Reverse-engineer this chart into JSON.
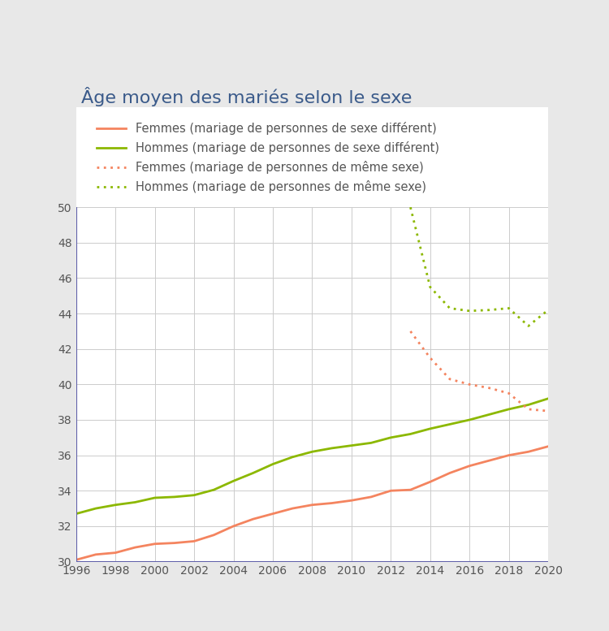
{
  "title": "Âge moyen des mariés selon le sexe",
  "years_main": [
    1996,
    1997,
    1998,
    1999,
    2000,
    2001,
    2002,
    2003,
    2004,
    2005,
    2006,
    2007,
    2008,
    2009,
    2010,
    2011,
    2012,
    2013,
    2014,
    2015,
    2016,
    2017,
    2018,
    2019,
    2020
  ],
  "femmes_diff": [
    30.1,
    30.4,
    30.5,
    30.8,
    31.0,
    31.05,
    31.15,
    31.5,
    32.0,
    32.4,
    32.7,
    33.0,
    33.2,
    33.3,
    33.45,
    33.65,
    34.0,
    34.05,
    34.5,
    35.0,
    35.4,
    35.7,
    36.0,
    36.2,
    36.5
  ],
  "hommes_diff": [
    32.7,
    33.0,
    33.2,
    33.35,
    33.6,
    33.65,
    33.75,
    34.05,
    34.55,
    35.0,
    35.5,
    35.9,
    36.2,
    36.4,
    36.55,
    36.7,
    37.0,
    37.2,
    37.5,
    37.75,
    38.0,
    38.3,
    38.6,
    38.85,
    39.2
  ],
  "years_same": [
    2013,
    2014,
    2015,
    2016,
    2017,
    2018,
    2019,
    2020
  ],
  "femmes_same": [
    43.0,
    41.5,
    40.3,
    40.0,
    39.8,
    39.5,
    38.6,
    38.5
  ],
  "hommes_same": [
    50.0,
    45.5,
    44.3,
    44.15,
    44.2,
    44.3,
    43.3,
    44.2
  ],
  "color_femmes": "#F4845F",
  "color_hommes": "#8CB800",
  "ylim": [
    30,
    50
  ],
  "xlim": [
    1996,
    2020
  ],
  "bg_color": "#e8e8e8",
  "plot_bg": "#ffffff",
  "border_color": "#6060aa",
  "legend_labels": [
    "Femmes (mariage de personnes de sexe différent)",
    "Hommes (mariage de personnes de sexe différent)",
    "Femmes (mariage de personnes de même sexe)",
    "Hommes (mariage de personnes de même sexe)"
  ],
  "title_color": "#3a5a8a",
  "title_fontsize": 16,
  "legend_fontsize": 10.5,
  "tick_fontsize": 10,
  "grid_color": "#cccccc"
}
